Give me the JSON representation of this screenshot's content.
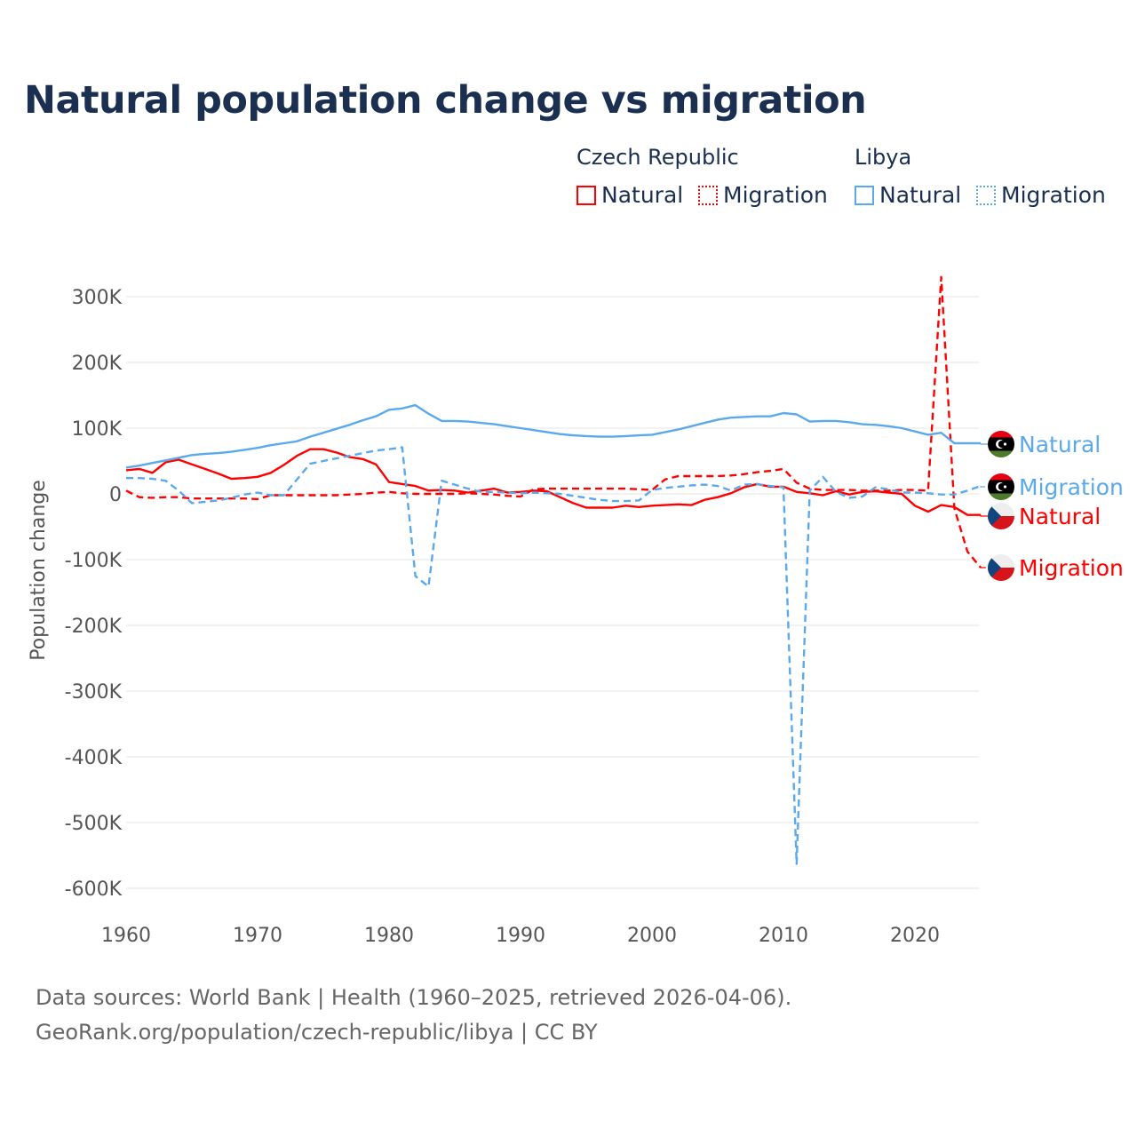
{
  "title": "Natural population change vs migration",
  "legend": {
    "groups": [
      {
        "name": "Czech Republic",
        "items": [
          "Natural",
          "Migration"
        ]
      },
      {
        "name": "Libya",
        "items": [
          "Natural",
          "Migration"
        ]
      }
    ]
  },
  "footer": {
    "line1": "Data sources: World Bank | Health (1960–2025, retrieved 2026-04-06).",
    "line2": "GeoRank.org/population/czech-republic/libya | CC BY"
  },
  "chart_data": {
    "type": "line",
    "title": "Natural population change vs migration",
    "xlabel": "",
    "ylabel": "Population change",
    "xlim": [
      1960,
      2025
    ],
    "ylim": [
      -600000,
      300000
    ],
    "x_ticks": [
      "1960",
      "1970",
      "1980",
      "1990",
      "2000",
      "2010",
      "2020"
    ],
    "y_ticks": [
      "300K",
      "200K",
      "100K",
      "0",
      "-100K",
      "-200K",
      "-300K",
      "-400K",
      "-500K",
      "-600K"
    ],
    "y_tick_values": [
      300,
      200,
      100,
      0,
      -100,
      -200,
      -300,
      -400,
      -500,
      -600
    ],
    "units": "thousands",
    "grid": true,
    "x_start": 1960,
    "series": [
      {
        "name": "Czech Republic Natural",
        "label": "Natural",
        "country": "Czech Republic",
        "color": "#ff0000",
        "dashed": false,
        "values": [
          36,
          38,
          32,
          48,
          52,
          45,
          38,
          31,
          23,
          24,
          26,
          32,
          44,
          58,
          68,
          68,
          63,
          56,
          53,
          45,
          18,
          15,
          12,
          5,
          6,
          5,
          2,
          5,
          8,
          2,
          3,
          5,
          4,
          -5,
          -14,
          -21,
          -21,
          -21,
          -18,
          -20,
          -18,
          -17,
          -16,
          -17,
          -9,
          -5,
          1,
          10,
          15,
          11,
          11,
          3,
          1,
          -2,
          4,
          -1,
          3,
          4,
          2,
          0,
          -18,
          -27,
          -17,
          -20,
          -32,
          -32
        ]
      },
      {
        "name": "Czech Republic Migration",
        "label": "Migration",
        "country": "Czech Republic",
        "color": "#ff0000",
        "dashed": true,
        "values": [
          5,
          -5,
          -6,
          -5,
          -5,
          -7,
          -7,
          -7,
          -7,
          -7,
          -8,
          -2,
          -2,
          -2,
          -2,
          -2,
          -2,
          -1,
          0,
          2,
          3,
          1,
          0,
          0,
          0,
          0,
          1,
          0,
          -1,
          -3,
          -4,
          7,
          8,
          8,
          8,
          8,
          8,
          8,
          8,
          7,
          6,
          22,
          27,
          27,
          27,
          27,
          28,
          30,
          33,
          35,
          38,
          17,
          8,
          6,
          6,
          6,
          5,
          5,
          5,
          6,
          6,
          5,
          330,
          -22,
          -88,
          -112
        ]
      },
      {
        "name": "Libya Natural",
        "label": "Natural",
        "country": "Libya",
        "color": "#5aa9ec",
        "dashed": false,
        "values": [
          40,
          43,
          47,
          51,
          55,
          59,
          61,
          62,
          64,
          67,
          70,
          74,
          77,
          80,
          87,
          93,
          99,
          105,
          112,
          118,
          128,
          130,
          135,
          122,
          111,
          111,
          110,
          108,
          106,
          103,
          100,
          97,
          94,
          91,
          89,
          88,
          87,
          87,
          88,
          89,
          90,
          94,
          98,
          103,
          108,
          113,
          116,
          117,
          118,
          118,
          123,
          121,
          110,
          111,
          111,
          109,
          106,
          105,
          103,
          100,
          95,
          90,
          93,
          77,
          77,
          77
        ]
      },
      {
        "name": "Libya Migration",
        "label": "Migration",
        "country": "Libya",
        "color": "#5aa9ec",
        "dashed": true,
        "values": [
          24,
          24,
          23,
          20,
          5,
          -14,
          -12,
          -10,
          -6,
          -1,
          2,
          -2,
          -2,
          22,
          46,
          50,
          54,
          58,
          62,
          66,
          68,
          71,
          -125,
          -141,
          20,
          14,
          8,
          3,
          3,
          2,
          1,
          2,
          1,
          0,
          -3,
          -6,
          -9,
          -11,
          -11,
          -10,
          6,
          9,
          11,
          13,
          14,
          12,
          5,
          14,
          15,
          12,
          10,
          -563,
          5,
          26,
          3,
          -6,
          -4,
          10,
          7,
          2,
          2,
          1,
          -1,
          -1,
          5,
          12
        ]
      }
    ]
  }
}
